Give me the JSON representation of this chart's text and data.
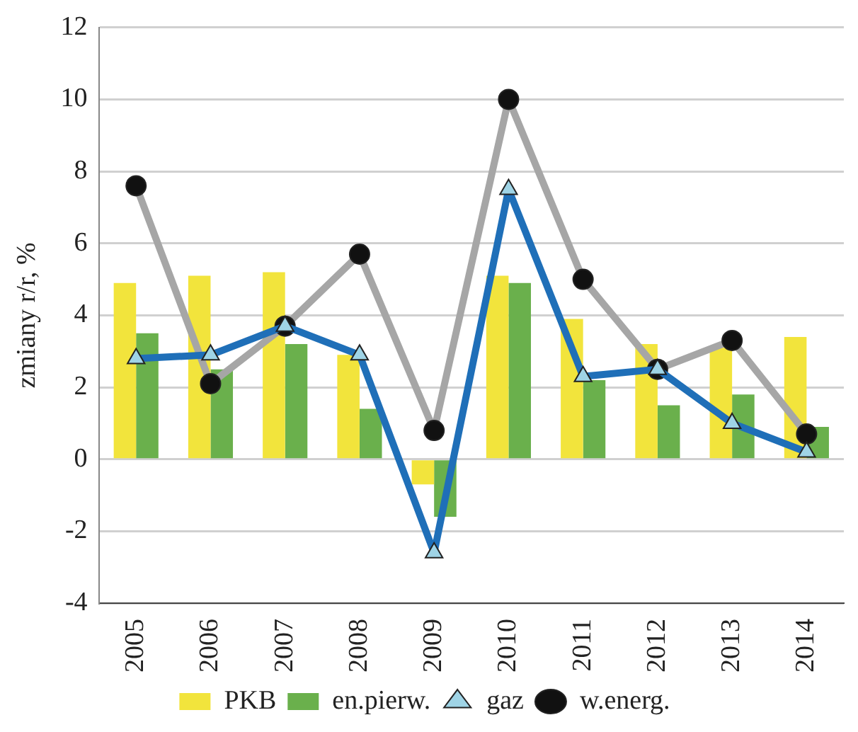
{
  "chart_data": {
    "type": "bar",
    "ylabel": "zmiany r/r, %",
    "categories": [
      "2005",
      "2006",
      "2007",
      "2008",
      "2009",
      "2010",
      "2011",
      "2012",
      "2013",
      "2014"
    ],
    "series": [
      {
        "name": "PKB",
        "color": "#f2e43c",
        "values": [
          4.9,
          5.1,
          5.2,
          2.9,
          -0.7,
          5.1,
          3.9,
          3.2,
          3.1,
          3.4
        ]
      },
      {
        "name": "en.pierw.",
        "color": "#6ab04c",
        "values": [
          3.5,
          2.5,
          3.2,
          1.4,
          -1.6,
          4.9,
          2.2,
          1.5,
          1.8,
          0.9
        ]
      },
      {
        "name": "gaz",
        "type": "line",
        "color": "#1f6fb8",
        "marker": "triangle",
        "values": [
          2.8,
          2.9,
          3.7,
          2.9,
          -2.6,
          7.5,
          2.3,
          2.5,
          1.0,
          0.2
        ]
      },
      {
        "name": "w.energ.",
        "type": "line",
        "color": "#a6a6a6",
        "marker": "circle",
        "values": [
          7.6,
          2.1,
          3.7,
          5.7,
          0.8,
          10.0,
          5.0,
          2.5,
          3.3,
          0.7
        ]
      }
    ],
    "ylim": [
      -4,
      12
    ],
    "yticks": [
      -4,
      -2,
      0,
      2,
      4,
      6,
      8,
      10,
      12
    ],
    "grid": "y",
    "legend": "bottom"
  }
}
